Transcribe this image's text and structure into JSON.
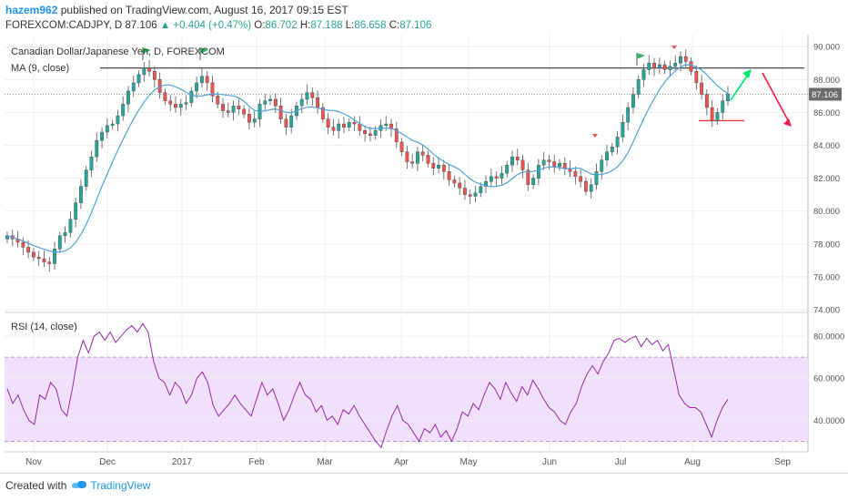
{
  "header": {
    "author": "hazem962",
    "published_text": "published on TradingView.com, August 16, 2017 09:15 EST"
  },
  "symbol_line": {
    "symbol": "FOREXCOM:CADJPY, D",
    "price": "87.106",
    "change": "▲ +0.404 (+0.47%)",
    "o_label": "O:",
    "o_value": "86.702",
    "h_label": "H:",
    "h_value": "87.188",
    "l_label": "L:",
    "l_value": "86.658",
    "c_label": "C:",
    "c_value": "87.106"
  },
  "footer": {
    "created_with": "Created with",
    "brand": "TradingView",
    "logo_icon": "tradingview-logo-icon"
  },
  "colors": {
    "up": "#26a69a",
    "down": "#ef5350",
    "ma": "#4fa3d9",
    "rsi": "#9c27b0",
    "rsi_band": "#f0e0fb",
    "grid": "#eeeeee",
    "hline": "#333333",
    "support": "#e53935",
    "arrow_up": "#00e676",
    "arrow_down": "#ff1744",
    "flag": "#3bb26a",
    "price_tag": "#6b6b6b"
  },
  "chart_data": [
    {
      "type": "candlestick",
      "title": "Canadian Dollar/Japanese Yen, D, FOREXCOM",
      "indicator_label": "MA (9, close)",
      "ylim": [
        74,
        90.4
      ],
      "yticks": [
        "74.000",
        "76.000",
        "78.000",
        "80.000",
        "82.000",
        "84.000",
        "86.000",
        "88.000",
        "90.000"
      ],
      "xticks": [
        "Nov",
        "Dec",
        "2017",
        "Feb",
        "Mar",
        "Apr",
        "May",
        "Jun",
        "Jul",
        "Aug",
        "Sep"
      ],
      "last_price_label": "87.106",
      "last_price": 87.106,
      "resistance_level": 88.7,
      "support_level": 85.5,
      "closes": [
        78.5,
        78.3,
        78.1,
        77.8,
        77.5,
        77.2,
        77.1,
        76.9,
        76.8,
        77.7,
        78.5,
        78.7,
        79.5,
        80.5,
        81.5,
        82.5,
        83.3,
        84.3,
        84.8,
        85.2,
        85.3,
        85.8,
        86.5,
        87.3,
        87.8,
        88.3,
        88.7,
        88.5,
        88.0,
        87.2,
        86.7,
        86.5,
        86.3,
        86.5,
        86.6,
        87.3,
        87.8,
        88.2,
        87.8,
        87.0,
        86.5,
        86.1,
        86.0,
        86.4,
        86.2,
        85.9,
        85.4,
        85.6,
        86.5,
        86.7,
        86.8,
        86.4,
        85.6,
        85.1,
        85.8,
        86.4,
        86.8,
        87.2,
        86.9,
        86.3,
        85.6,
        85.1,
        84.9,
        85.3,
        85.1,
        85.4,
        85.3,
        84.9,
        84.7,
        84.6,
        84.9,
        85.2,
        85.3,
        85.0,
        84.2,
        83.6,
        83.0,
        82.9,
        83.6,
        83.4,
        82.9,
        82.6,
        82.8,
        82.4,
        81.9,
        81.7,
        81.4,
        81.0,
        80.9,
        81.1,
        81.5,
        81.8,
        82.1,
        82.0,
        82.3,
        82.8,
        83.3,
        83.1,
        82.5,
        81.6,
        82.0,
        82.8,
        83.1,
        83.0,
        82.7,
        82.9,
        82.6,
        82.4,
        82.1,
        81.8,
        81.2,
        81.6,
        82.4,
        83.1,
        83.6,
        83.9,
        84.5,
        85.4,
        86.3,
        87.1,
        88.0,
        88.6,
        89.0,
        88.7,
        88.9,
        88.6,
        88.8,
        89.0,
        89.4,
        89.1,
        88.5,
        87.8,
        87.1,
        86.3,
        85.5,
        86.0,
        86.7,
        87.106
      ],
      "ma_period": 9
    },
    {
      "type": "line",
      "title": "RSI (14, close)",
      "ylim": [
        25,
        90
      ],
      "yticks": [
        "40.0000",
        "60.0000",
        "80.0000"
      ],
      "band": [
        30,
        70
      ],
      "values": [
        55,
        48,
        52,
        45,
        40,
        38,
        52,
        50,
        58,
        55,
        45,
        42,
        55,
        70,
        78,
        72,
        80,
        82,
        78,
        82,
        77,
        80,
        83,
        85,
        82,
        86,
        82,
        68,
        60,
        58,
        52,
        58,
        55,
        48,
        52,
        60,
        63,
        58,
        47,
        42,
        45,
        48,
        52,
        48,
        45,
        42,
        50,
        58,
        52,
        55,
        48,
        40,
        45,
        52,
        58,
        52,
        50,
        44,
        47,
        40,
        42,
        38,
        45,
        43,
        47,
        42,
        38,
        34,
        30,
        27,
        35,
        42,
        47,
        40,
        38,
        34,
        30,
        36,
        34,
        38,
        32,
        35,
        30,
        36,
        44,
        42,
        48,
        45,
        52,
        58,
        55,
        50,
        58,
        53,
        49,
        56,
        52,
        59,
        55,
        50,
        46,
        44,
        40,
        38,
        44,
        48,
        56,
        62,
        66,
        62,
        68,
        72,
        78,
        79,
        77,
        79,
        80,
        75,
        79,
        76,
        78,
        73,
        76,
        64,
        52,
        48,
        46,
        46,
        44,
        38,
        32,
        40,
        46,
        50
      ]
    }
  ]
}
